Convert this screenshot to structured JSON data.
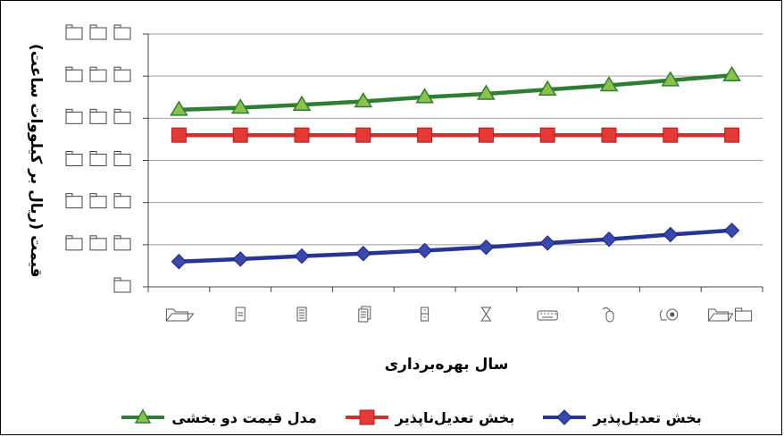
{
  "chart_data": {
    "type": "line",
    "title": "",
    "xlabel": "سال بهره‌برداری",
    "ylabel": "قیمت (ریال بر کیلووات ساعت)",
    "categories": [
      "1",
      "2",
      "3",
      "4",
      "5",
      "6",
      "7",
      "8",
      "9",
      "10"
    ],
    "x_tick_icons": [
      "folder-icon",
      "document-icon",
      "document-lines-icon",
      "multiple-documents-icon",
      "filing-cabinet-icon",
      "hourglass-icon",
      "keyboard-icon",
      "mouse-icon",
      "tape-icon",
      "folders-icon"
    ],
    "ylim": [
      0,
      6
    ],
    "y_ticks": [
      0,
      1,
      2,
      3,
      4,
      5,
      6
    ],
    "y_tick_label_note": "tick labels rendered as unrenderable glyph boxes",
    "grid": true,
    "legend": "bottom",
    "series": [
      {
        "name": "مدل قیمت دو بخشی",
        "color": "#2e7d32",
        "marker": "triangle",
        "values": [
          4.2,
          4.25,
          4.32,
          4.4,
          4.5,
          4.58,
          4.68,
          4.78,
          4.9,
          5.02
        ]
      },
      {
        "name": "بخش تعدیل‌ناپذیر",
        "color": "#d32f2f",
        "marker": "square",
        "values": [
          3.6,
          3.6,
          3.6,
          3.6,
          3.6,
          3.6,
          3.6,
          3.6,
          3.6,
          3.6
        ]
      },
      {
        "name": "بخش تعدیل‌پذیر",
        "color": "#283593",
        "marker": "diamond",
        "values": [
          0.6,
          0.66,
          0.73,
          0.79,
          0.86,
          0.94,
          1.04,
          1.13,
          1.24,
          1.34
        ]
      }
    ]
  }
}
